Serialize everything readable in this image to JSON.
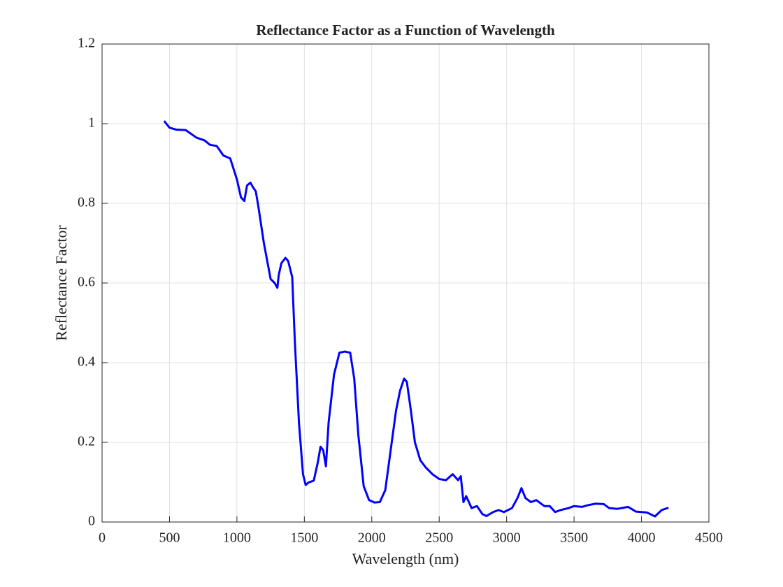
{
  "chart_data": {
    "type": "line",
    "title": "Reflectance Factor as a Function of Wavelength",
    "x_label": "Wavelength (nm)",
    "y_label": "Reflectance Factor",
    "color": "#0000ff",
    "grid": true,
    "xlim": [
      0,
      4500
    ],
    "ylim": [
      0,
      1.2
    ],
    "xticks": [
      0,
      500,
      1000,
      1500,
      2000,
      2500,
      3000,
      3500,
      4000,
      4500
    ],
    "yticks": [
      0,
      0.2,
      0.4,
      0.6,
      0.8,
      1,
      1.2
    ],
    "x": [
      460,
      500,
      550,
      620,
      700,
      760,
      800,
      850,
      900,
      950,
      1000,
      1030,
      1055,
      1075,
      1100,
      1120,
      1140,
      1160,
      1200,
      1250,
      1280,
      1300,
      1310,
      1330,
      1360,
      1380,
      1410,
      1430,
      1460,
      1490,
      1510,
      1530,
      1570,
      1600,
      1620,
      1640,
      1660,
      1680,
      1720,
      1760,
      1800,
      1840,
      1870,
      1900,
      1940,
      1980,
      2020,
      2060,
      2100,
      2140,
      2180,
      2210,
      2240,
      2260,
      2290,
      2320,
      2360,
      2400,
      2450,
      2500,
      2550,
      2600,
      2640,
      2660,
      2680,
      2700,
      2740,
      2780,
      2820,
      2850,
      2900,
      2940,
      2980,
      3040,
      3080,
      3110,
      3140,
      3180,
      3220,
      3280,
      3320,
      3360,
      3400,
      3460,
      3500,
      3560,
      3600,
      3660,
      3720,
      3760,
      3820,
      3900,
      3960,
      4040,
      4100,
      4150,
      4200
    ],
    "values": [
      1.007,
      0.99,
      0.985,
      0.984,
      0.965,
      0.958,
      0.947,
      0.944,
      0.92,
      0.913,
      0.86,
      0.815,
      0.806,
      0.845,
      0.852,
      0.84,
      0.83,
      0.79,
      0.7,
      0.61,
      0.6,
      0.588,
      0.62,
      0.65,
      0.663,
      0.655,
      0.615,
      0.45,
      0.25,
      0.12,
      0.093,
      0.099,
      0.104,
      0.15,
      0.189,
      0.18,
      0.14,
      0.25,
      0.37,
      0.425,
      0.428,
      0.425,
      0.36,
      0.22,
      0.09,
      0.055,
      0.049,
      0.05,
      0.08,
      0.18,
      0.28,
      0.33,
      0.36,
      0.352,
      0.28,
      0.2,
      0.155,
      0.137,
      0.12,
      0.108,
      0.105,
      0.12,
      0.105,
      0.115,
      0.05,
      0.065,
      0.035,
      0.04,
      0.02,
      0.015,
      0.025,
      0.03,
      0.025,
      0.035,
      0.06,
      0.085,
      0.06,
      0.05,
      0.055,
      0.04,
      0.04,
      0.025,
      0.03,
      0.035,
      0.04,
      0.038,
      0.042,
      0.046,
      0.045,
      0.035,
      0.033,
      0.038,
      0.026,
      0.024,
      0.014,
      0.03,
      0.036
    ]
  }
}
